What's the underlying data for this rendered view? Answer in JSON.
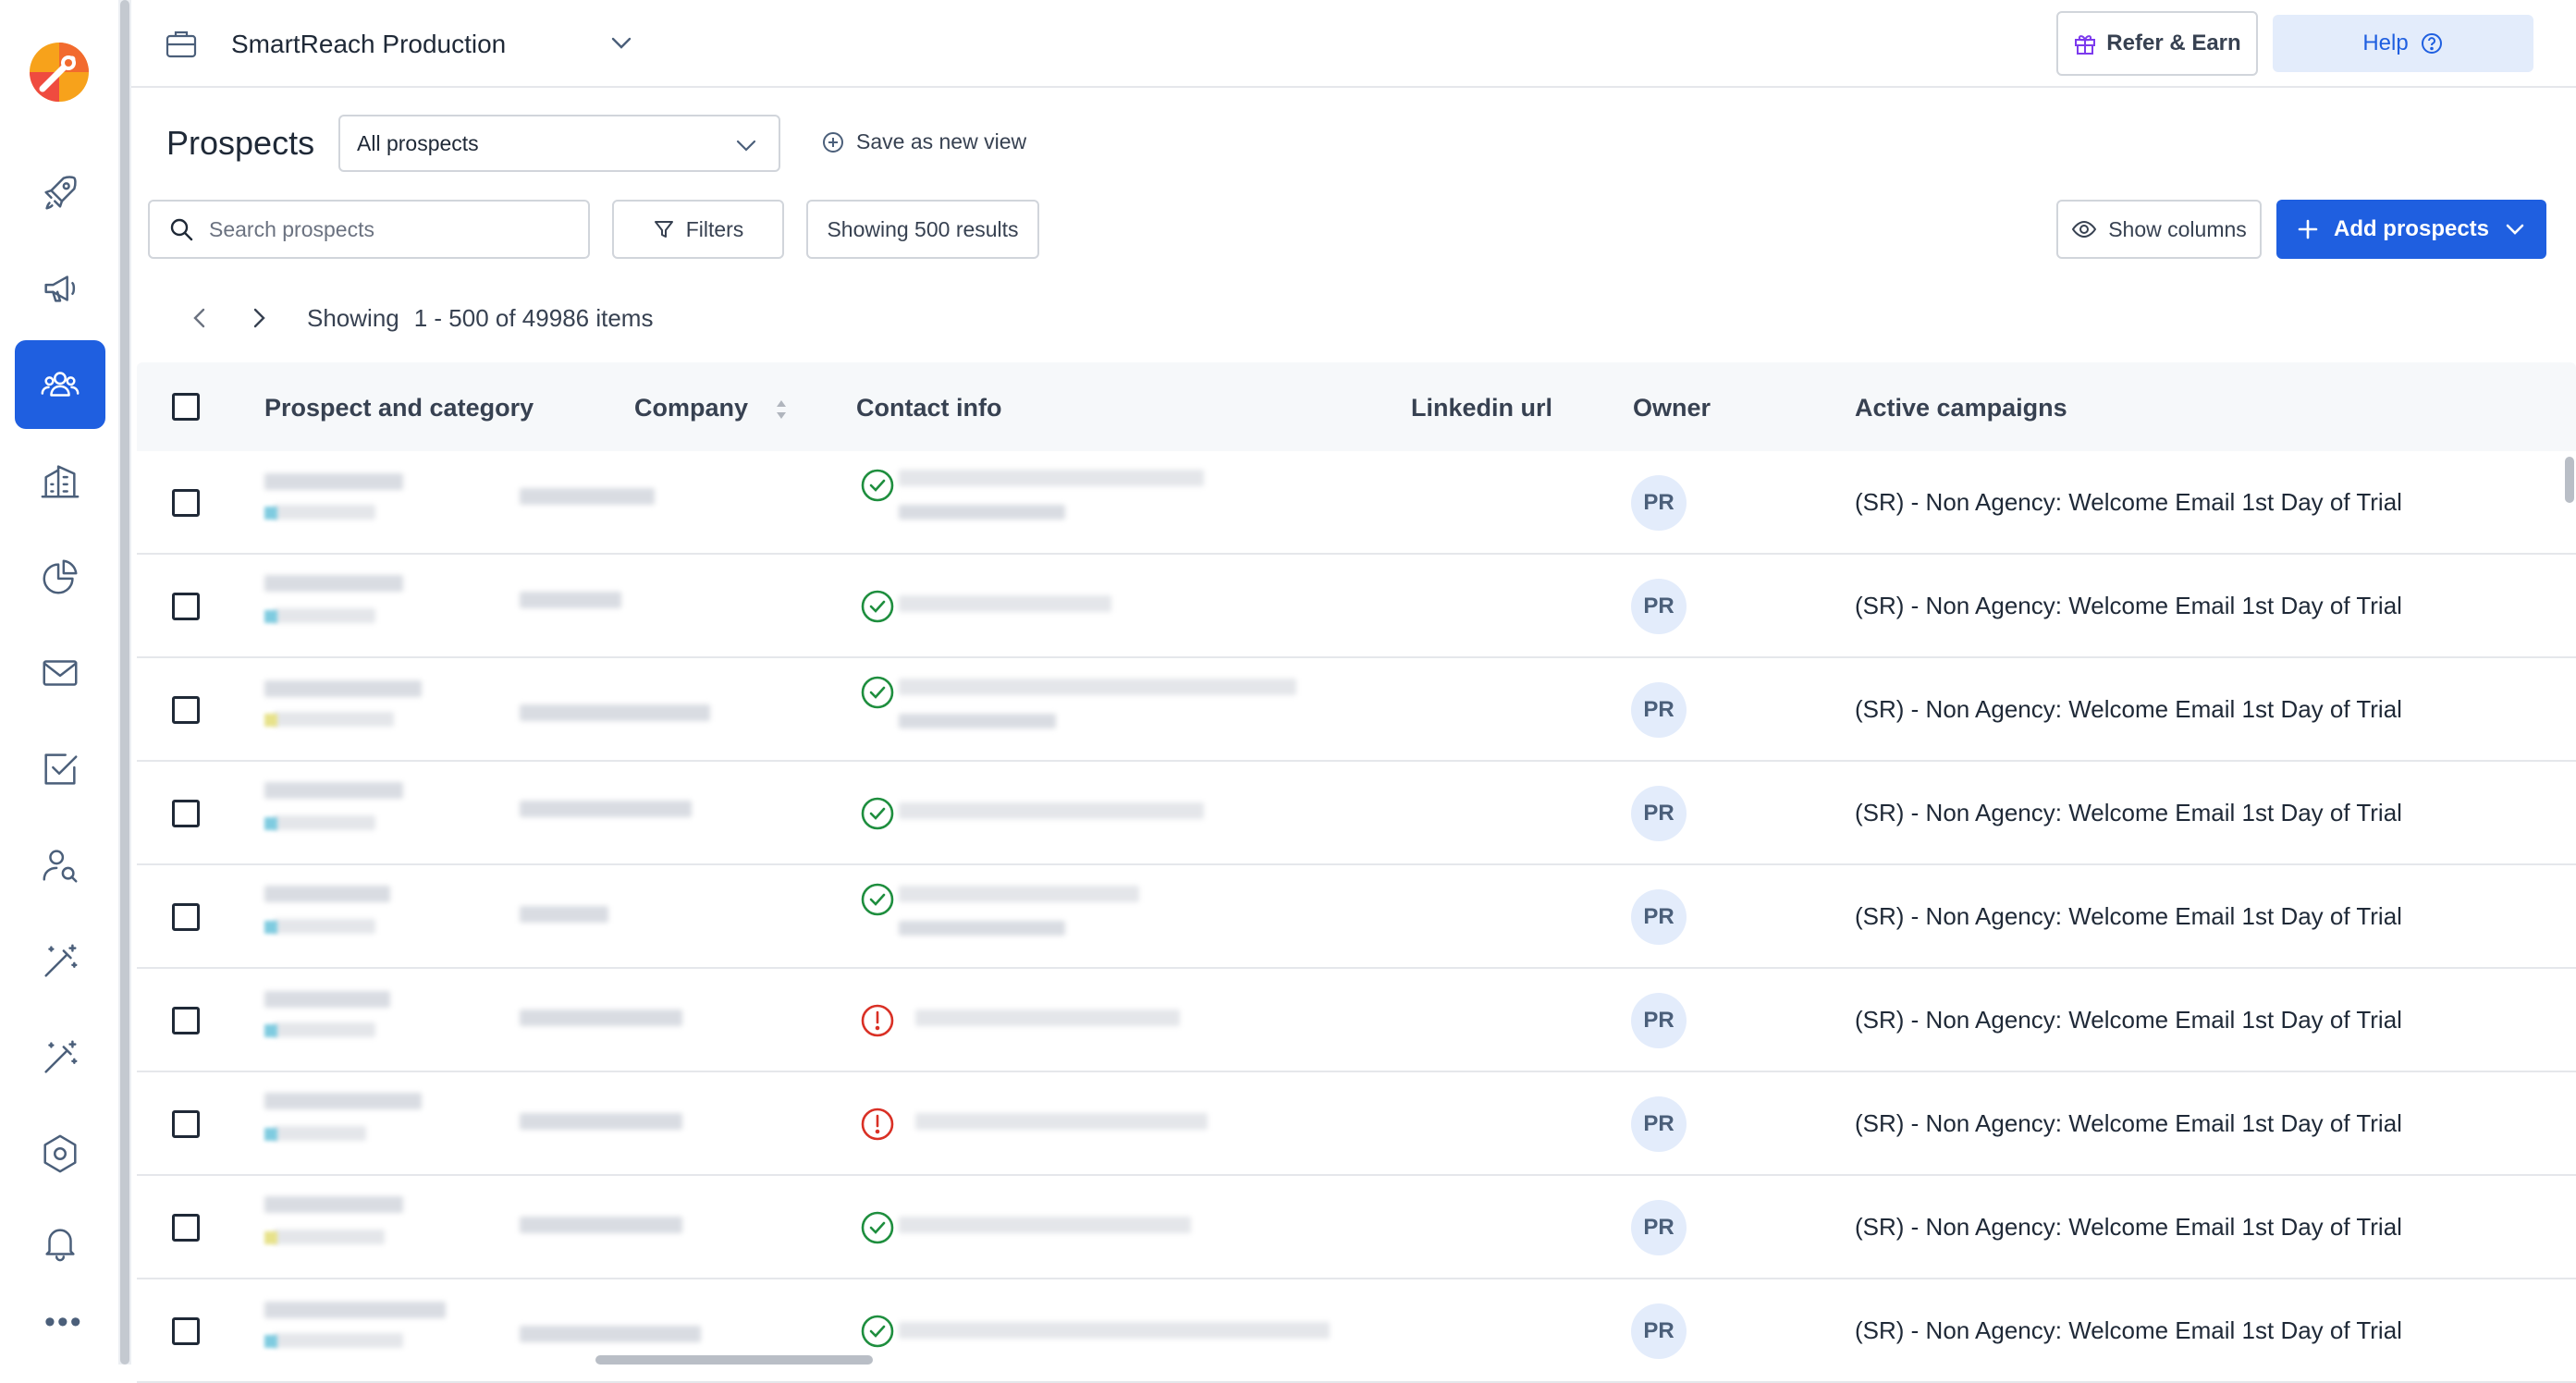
{
  "sidebar": {
    "items": [
      {
        "name": "rocket-icon",
        "active": false
      },
      {
        "name": "megaphone-icon",
        "active": false
      },
      {
        "name": "users-icon",
        "active": true
      },
      {
        "name": "building-icon",
        "active": false
      },
      {
        "name": "pie-chart-icon",
        "active": false
      },
      {
        "name": "mail-icon",
        "active": false
      },
      {
        "name": "check-square-icon",
        "active": false
      },
      {
        "name": "user-search-icon",
        "active": false
      },
      {
        "name": "magic-wand-icon",
        "active": false
      },
      {
        "name": "magic-wand-icon",
        "active": false
      },
      {
        "name": "hexagon-settings-icon",
        "active": false
      },
      {
        "name": "bell-icon",
        "active": false
      }
    ],
    "more_label": "•••"
  },
  "topbar": {
    "workspace": "SmartReach Production",
    "refer_label": "Refer & Earn",
    "help_label": "Help"
  },
  "header": {
    "title": "Prospects",
    "view_selected": "All prospects",
    "save_view_label": "Save as new view",
    "search_placeholder": "Search prospects",
    "filters_label": "Filters",
    "results_label": "Showing 500 results",
    "show_columns_label": "Show columns",
    "add_prospects_label": "Add prospects"
  },
  "pager": {
    "label": "Showing",
    "range": "1 - 500 of 49986 items"
  },
  "table": {
    "columns": [
      "Prospect and category",
      "Company",
      "Contact info",
      "Linkedin url",
      "Owner",
      "Active campaigns"
    ],
    "rows": [
      {
        "contact_status": "valid",
        "owner": "PR",
        "campaign": "(SR) - Non Agency: Welcome Email 1st Day of Trial"
      },
      {
        "contact_status": "valid",
        "owner": "PR",
        "campaign": "(SR) - Non Agency: Welcome Email 1st Day of Trial"
      },
      {
        "contact_status": "valid",
        "owner": "PR",
        "campaign": "(SR) - Non Agency: Welcome Email 1st Day of Trial"
      },
      {
        "contact_status": "valid",
        "owner": "PR",
        "campaign": "(SR) - Non Agency: Welcome Email 1st Day of Trial"
      },
      {
        "contact_status": "valid",
        "owner": "PR",
        "campaign": "(SR) - Non Agency: Welcome Email 1st Day of Trial"
      },
      {
        "contact_status": "invalid",
        "owner": "PR",
        "campaign": "(SR) - Non Agency: Welcome Email 1st Day of Trial"
      },
      {
        "contact_status": "invalid",
        "owner": "PR",
        "campaign": "(SR) - Non Agency: Welcome Email 1st Day of Trial"
      },
      {
        "contact_status": "valid",
        "owner": "PR",
        "campaign": "(SR) - Non Agency: Welcome Email 1st Day of Trial"
      },
      {
        "contact_status": "valid",
        "owner": "PR",
        "campaign": "(SR) - Non Agency: Welcome Email 1st Day of Trial"
      }
    ]
  },
  "colors": {
    "accent": "#1f5fe0",
    "valid": "#1e8e3e",
    "invalid": "#d93025",
    "icon": "#4b5f7a"
  }
}
